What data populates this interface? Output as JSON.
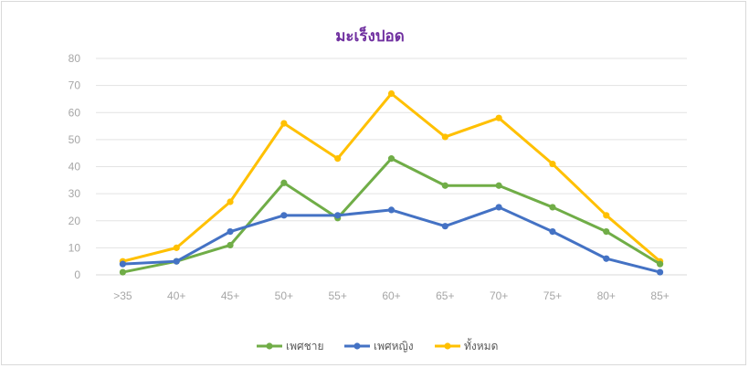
{
  "chart_data": {
    "type": "line",
    "title": "มะเร็งปอด",
    "categories": [
      ">35",
      "40+",
      "45+",
      "50+",
      "55+",
      "60+",
      "65+",
      "70+",
      "75+",
      "80+",
      "85+"
    ],
    "ylim": [
      0,
      80
    ],
    "yticks": [
      0,
      10,
      20,
      30,
      40,
      50,
      60,
      70,
      80
    ],
    "grid": true,
    "legend_position": "bottom",
    "series": [
      {
        "name": "เพศชาย",
        "color": "#70ad47",
        "values": [
          1,
          5,
          11,
          34,
          21,
          43,
          33,
          33,
          25,
          16,
          4
        ]
      },
      {
        "name": "เพศหญิง",
        "color": "#4472c4",
        "values": [
          4,
          5,
          16,
          22,
          22,
          24,
          18,
          25,
          16,
          6,
          1
        ]
      },
      {
        "name": "ทั้งหมด",
        "color": "#ffc000",
        "values": [
          5,
          10,
          27,
          56,
          43,
          67,
          51,
          58,
          41,
          22,
          5
        ]
      }
    ],
    "title_color": "#7030a0"
  }
}
